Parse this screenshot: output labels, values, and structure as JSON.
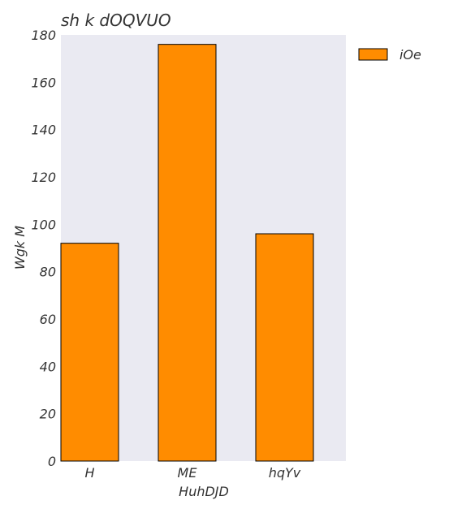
{
  "chart_data": {
    "type": "bar",
    "title": "sh k dOQVUO",
    "xlabel": "HuhDJD",
    "ylabel": "Wgk M",
    "categories": [
      "H",
      "ME",
      "hqYv"
    ],
    "series": [
      {
        "name": "iOe",
        "values": [
          92,
          176,
          96
        ],
        "color": "#ff8c00"
      }
    ],
    "ylim": [
      0,
      180
    ],
    "yticks": [
      0,
      20,
      40,
      60,
      80,
      100,
      120,
      140,
      160,
      180
    ],
    "legend_position": "outside-top-right",
    "background_color": "#eaeaf2",
    "bar_edge_color": "#000000",
    "grid": false
  }
}
